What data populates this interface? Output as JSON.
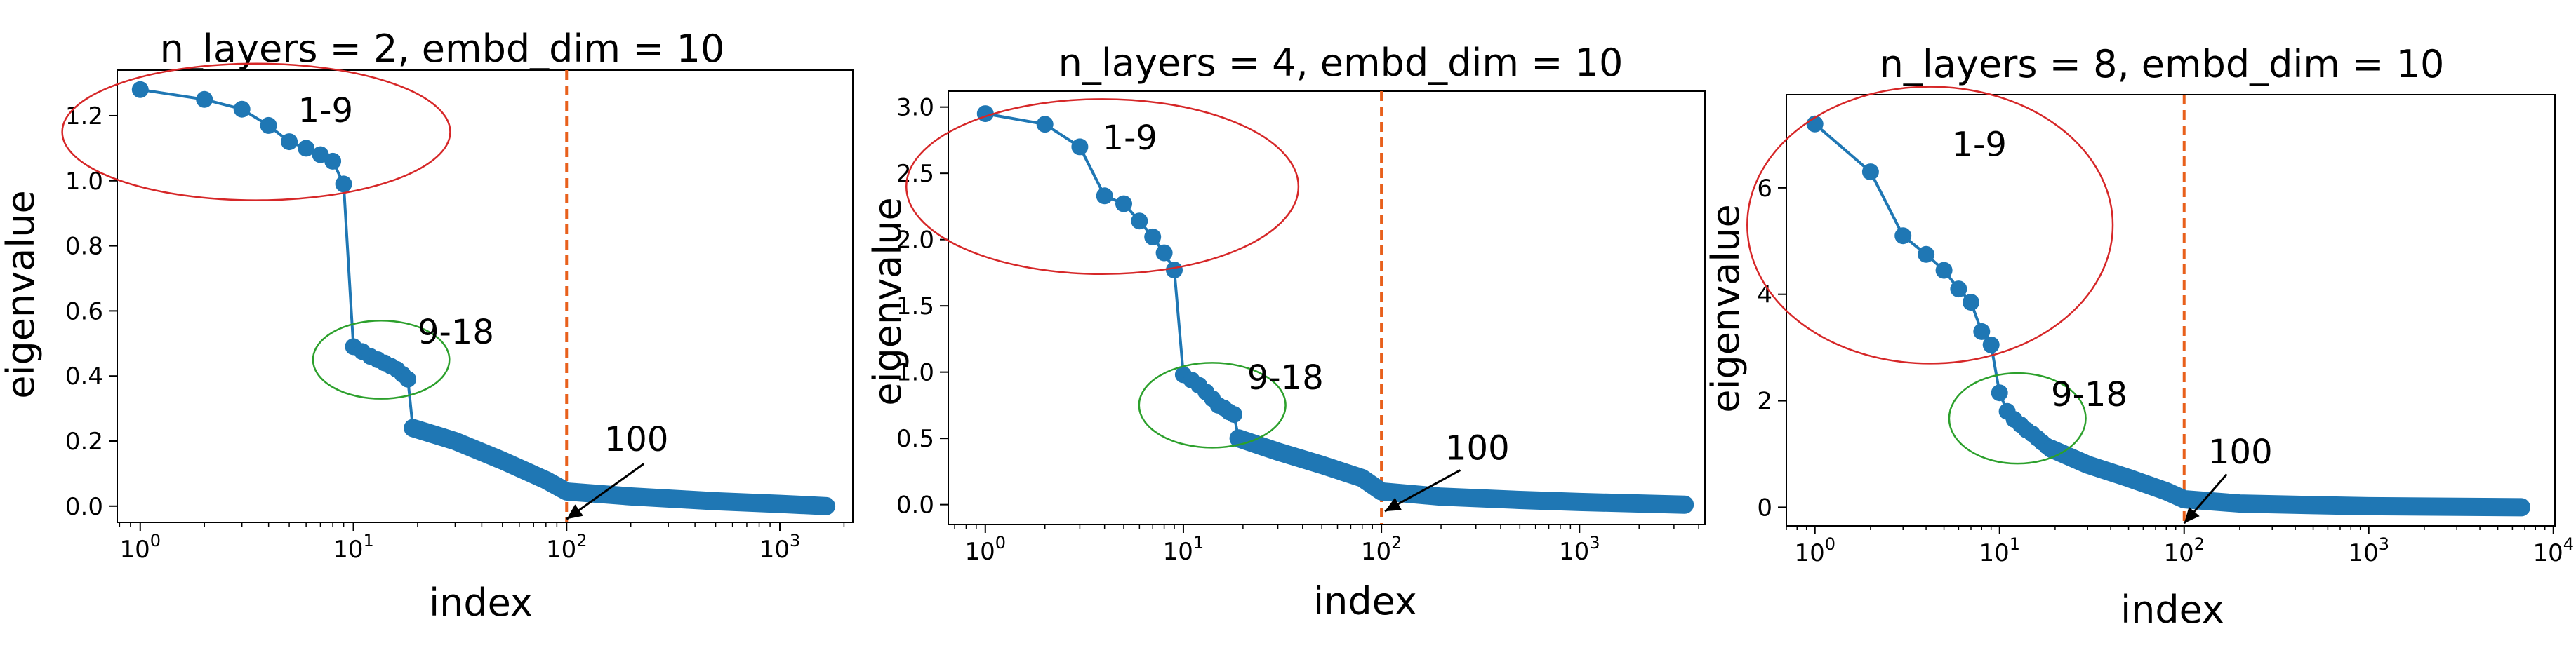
{
  "marker_color": "#1f77b4",
  "refline_color": "#e8601c",
  "chart_data": [
    {
      "type": "line",
      "title": "n_layers = 2, embd_dim = 10",
      "xlabel": "index",
      "ylabel": "eigenvalue",
      "x_scale": "log",
      "xlim": [
        0.78,
        2200
      ],
      "ylim": [
        -0.05,
        1.34
      ],
      "xticks": [
        1,
        10,
        100,
        1000
      ],
      "xtick_labels": [
        {
          "base": "10",
          "exp": "0"
        },
        {
          "base": "10",
          "exp": "1"
        },
        {
          "base": "10",
          "exp": "2"
        },
        {
          "base": "10",
          "exp": "3"
        }
      ],
      "yticks": [
        0.0,
        0.2,
        0.4,
        0.6,
        0.8,
        1.0,
        1.2
      ],
      "ytick_labels": [
        "0.0",
        "0.2",
        "0.4",
        "0.6",
        "0.8",
        "1.0",
        "1.2"
      ],
      "reference_line_x": 100,
      "series": [
        {
          "head": [
            [
              1,
              1.28
            ],
            [
              2,
              1.25
            ],
            [
              3,
              1.22
            ],
            [
              4,
              1.17
            ],
            [
              5,
              1.12
            ],
            [
              6,
              1.1
            ],
            [
              7,
              1.08
            ],
            [
              8,
              1.06
            ],
            [
              9,
              0.99
            ],
            [
              10,
              0.49
            ],
            [
              11,
              0.475
            ],
            [
              12,
              0.46
            ],
            [
              13,
              0.45
            ],
            [
              14,
              0.44
            ],
            [
              15,
              0.43
            ],
            [
              16,
              0.42
            ],
            [
              17,
              0.405
            ],
            [
              18,
              0.39
            ],
            [
              19,
              0.24
            ]
          ],
          "tail": [
            [
              19,
              0.24
            ],
            [
              30,
              0.2
            ],
            [
              50,
              0.14
            ],
            [
              80,
              0.08
            ],
            [
              100,
              0.045
            ],
            [
              200,
              0.03
            ],
            [
              500,
              0.015
            ],
            [
              1000,
              0.007
            ],
            [
              1650,
              0.0
            ]
          ]
        }
      ],
      "annotations": [
        {
          "text": "1-9",
          "x": 5.5,
          "y": 1.18,
          "shape": "ellipse",
          "color": "#d62728",
          "cx": 3.5,
          "cy": 1.15,
          "rx_decades": 0.91,
          "ry": 0.21
        },
        {
          "text": "9-18",
          "x": 20,
          "y": 0.5,
          "shape": "ellipse",
          "color": "#2ca02c",
          "cx": 13.5,
          "cy": 0.45,
          "rx_decades": 0.32,
          "ry": 0.12
        },
        {
          "text": "100",
          "x": 150,
          "y": 0.17,
          "shape": "arrow",
          "x0": 230,
          "y0": 0.13,
          "x1": 100,
          "y1": -0.04
        }
      ]
    },
    {
      "type": "line",
      "title": "n_layers = 4, embd_dim = 10",
      "xlabel": "index",
      "ylabel": "eigenvalue",
      "x_scale": "log",
      "xlim": [
        0.65,
        4300
      ],
      "ylim": [
        -0.15,
        3.12
      ],
      "xticks": [
        1,
        10,
        100,
        1000
      ],
      "xtick_labels": [
        {
          "base": "10",
          "exp": "0"
        },
        {
          "base": "10",
          "exp": "1"
        },
        {
          "base": "10",
          "exp": "2"
        },
        {
          "base": "10",
          "exp": "3"
        }
      ],
      "yticks": [
        0.0,
        0.5,
        1.0,
        1.5,
        2.0,
        2.5,
        3.0
      ],
      "ytick_labels": [
        "0.0",
        "0.5",
        "1.0",
        "1.5",
        "2.0",
        "2.5",
        "3.0"
      ],
      "reference_line_x": 100,
      "series": [
        {
          "head": [
            [
              1,
              2.95
            ],
            [
              2,
              2.87
            ],
            [
              3,
              2.7
            ],
            [
              4,
              2.33
            ],
            [
              5,
              2.27
            ],
            [
              6,
              2.14
            ],
            [
              7,
              2.02
            ],
            [
              8,
              1.9
            ],
            [
              9,
              1.77
            ],
            [
              10,
              0.98
            ],
            [
              11,
              0.94
            ],
            [
              12,
              0.9
            ],
            [
              13,
              0.85
            ],
            [
              14,
              0.8
            ],
            [
              15,
              0.75
            ],
            [
              16,
              0.73
            ],
            [
              17,
              0.7
            ],
            [
              18,
              0.68
            ],
            [
              19,
              0.5
            ]
          ],
          "tail": [
            [
              19,
              0.5
            ],
            [
              30,
              0.4
            ],
            [
              50,
              0.3
            ],
            [
              80,
              0.2
            ],
            [
              100,
              0.1
            ],
            [
              200,
              0.06
            ],
            [
              500,
              0.035
            ],
            [
              1000,
              0.02
            ],
            [
              3400,
              0.0
            ]
          ]
        }
      ],
      "annotations": [
        {
          "text": "1-9",
          "x": 3.9,
          "y": 2.68,
          "shape": "ellipse",
          "color": "#d62728",
          "cx": 3.9,
          "cy": 2.4,
          "rx_decades": 0.99,
          "ry": 0.66
        },
        {
          "text": "9-18",
          "x": 21,
          "y": 0.87,
          "shape": "ellipse",
          "color": "#2ca02c",
          "cx": 14,
          "cy": 0.75,
          "rx_decades": 0.37,
          "ry": 0.32
        },
        {
          "text": "100",
          "x": 210,
          "y": 0.34,
          "shape": "arrow",
          "x0": 250,
          "y0": 0.26,
          "x1": 104,
          "y1": -0.05
        }
      ]
    },
    {
      "type": "line",
      "title": "n_layers = 8, embd_dim = 10",
      "xlabel": "index",
      "ylabel": "eigenvalue",
      "x_scale": "log",
      "xlim": [
        0.7,
        10200
      ],
      "ylim": [
        -0.35,
        7.75
      ],
      "xticks": [
        1,
        10,
        100,
        1000,
        10000
      ],
      "xtick_labels": [
        {
          "base": "10",
          "exp": "0"
        },
        {
          "base": "10",
          "exp": "1"
        },
        {
          "base": "10",
          "exp": "2"
        },
        {
          "base": "10",
          "exp": "3"
        },
        {
          "base": "10",
          "exp": "4"
        }
      ],
      "yticks": [
        0,
        2,
        4,
        6
      ],
      "ytick_labels": [
        "0",
        "2",
        "4",
        "6"
      ],
      "reference_line_x": 100,
      "series": [
        {
          "head": [
            [
              1,
              7.2
            ],
            [
              2,
              6.3
            ],
            [
              3,
              5.1
            ],
            [
              4,
              4.75
            ],
            [
              5,
              4.45
            ],
            [
              6,
              4.1
            ],
            [
              7,
              3.85
            ],
            [
              8,
              3.3
            ],
            [
              9,
              3.05
            ],
            [
              10,
              2.15
            ],
            [
              11,
              1.8
            ],
            [
              12,
              1.65
            ],
            [
              13,
              1.55
            ],
            [
              14,
              1.45
            ],
            [
              15,
              1.38
            ],
            [
              16,
              1.3
            ],
            [
              17,
              1.22
            ],
            [
              18,
              1.15
            ],
            [
              19,
              1.1
            ]
          ],
          "tail": [
            [
              19,
              1.1
            ],
            [
              30,
              0.8
            ],
            [
              50,
              0.55
            ],
            [
              80,
              0.3
            ],
            [
              100,
              0.15
            ],
            [
              200,
              0.07
            ],
            [
              500,
              0.04
            ],
            [
              1000,
              0.02
            ],
            [
              6700,
              0.0
            ]
          ]
        }
      ],
      "annotations": [
        {
          "text": "1-9",
          "x": 5.5,
          "y": 6.6,
          "shape": "ellipse",
          "color": "#d62728",
          "cx": 4.2,
          "cy": 5.3,
          "rx_decades": 0.99,
          "ry": 2.6
        },
        {
          "text": "9-18",
          "x": 19,
          "y": 1.9,
          "shape": "ellipse",
          "color": "#2ca02c",
          "cx": 12.5,
          "cy": 1.67,
          "rx_decades": 0.37,
          "ry": 0.85
        },
        {
          "text": "100",
          "x": 135,
          "y": 0.82,
          "shape": "arrow",
          "x0": 170,
          "y0": 0.62,
          "x1": 100,
          "y1": -0.3
        }
      ]
    }
  ]
}
